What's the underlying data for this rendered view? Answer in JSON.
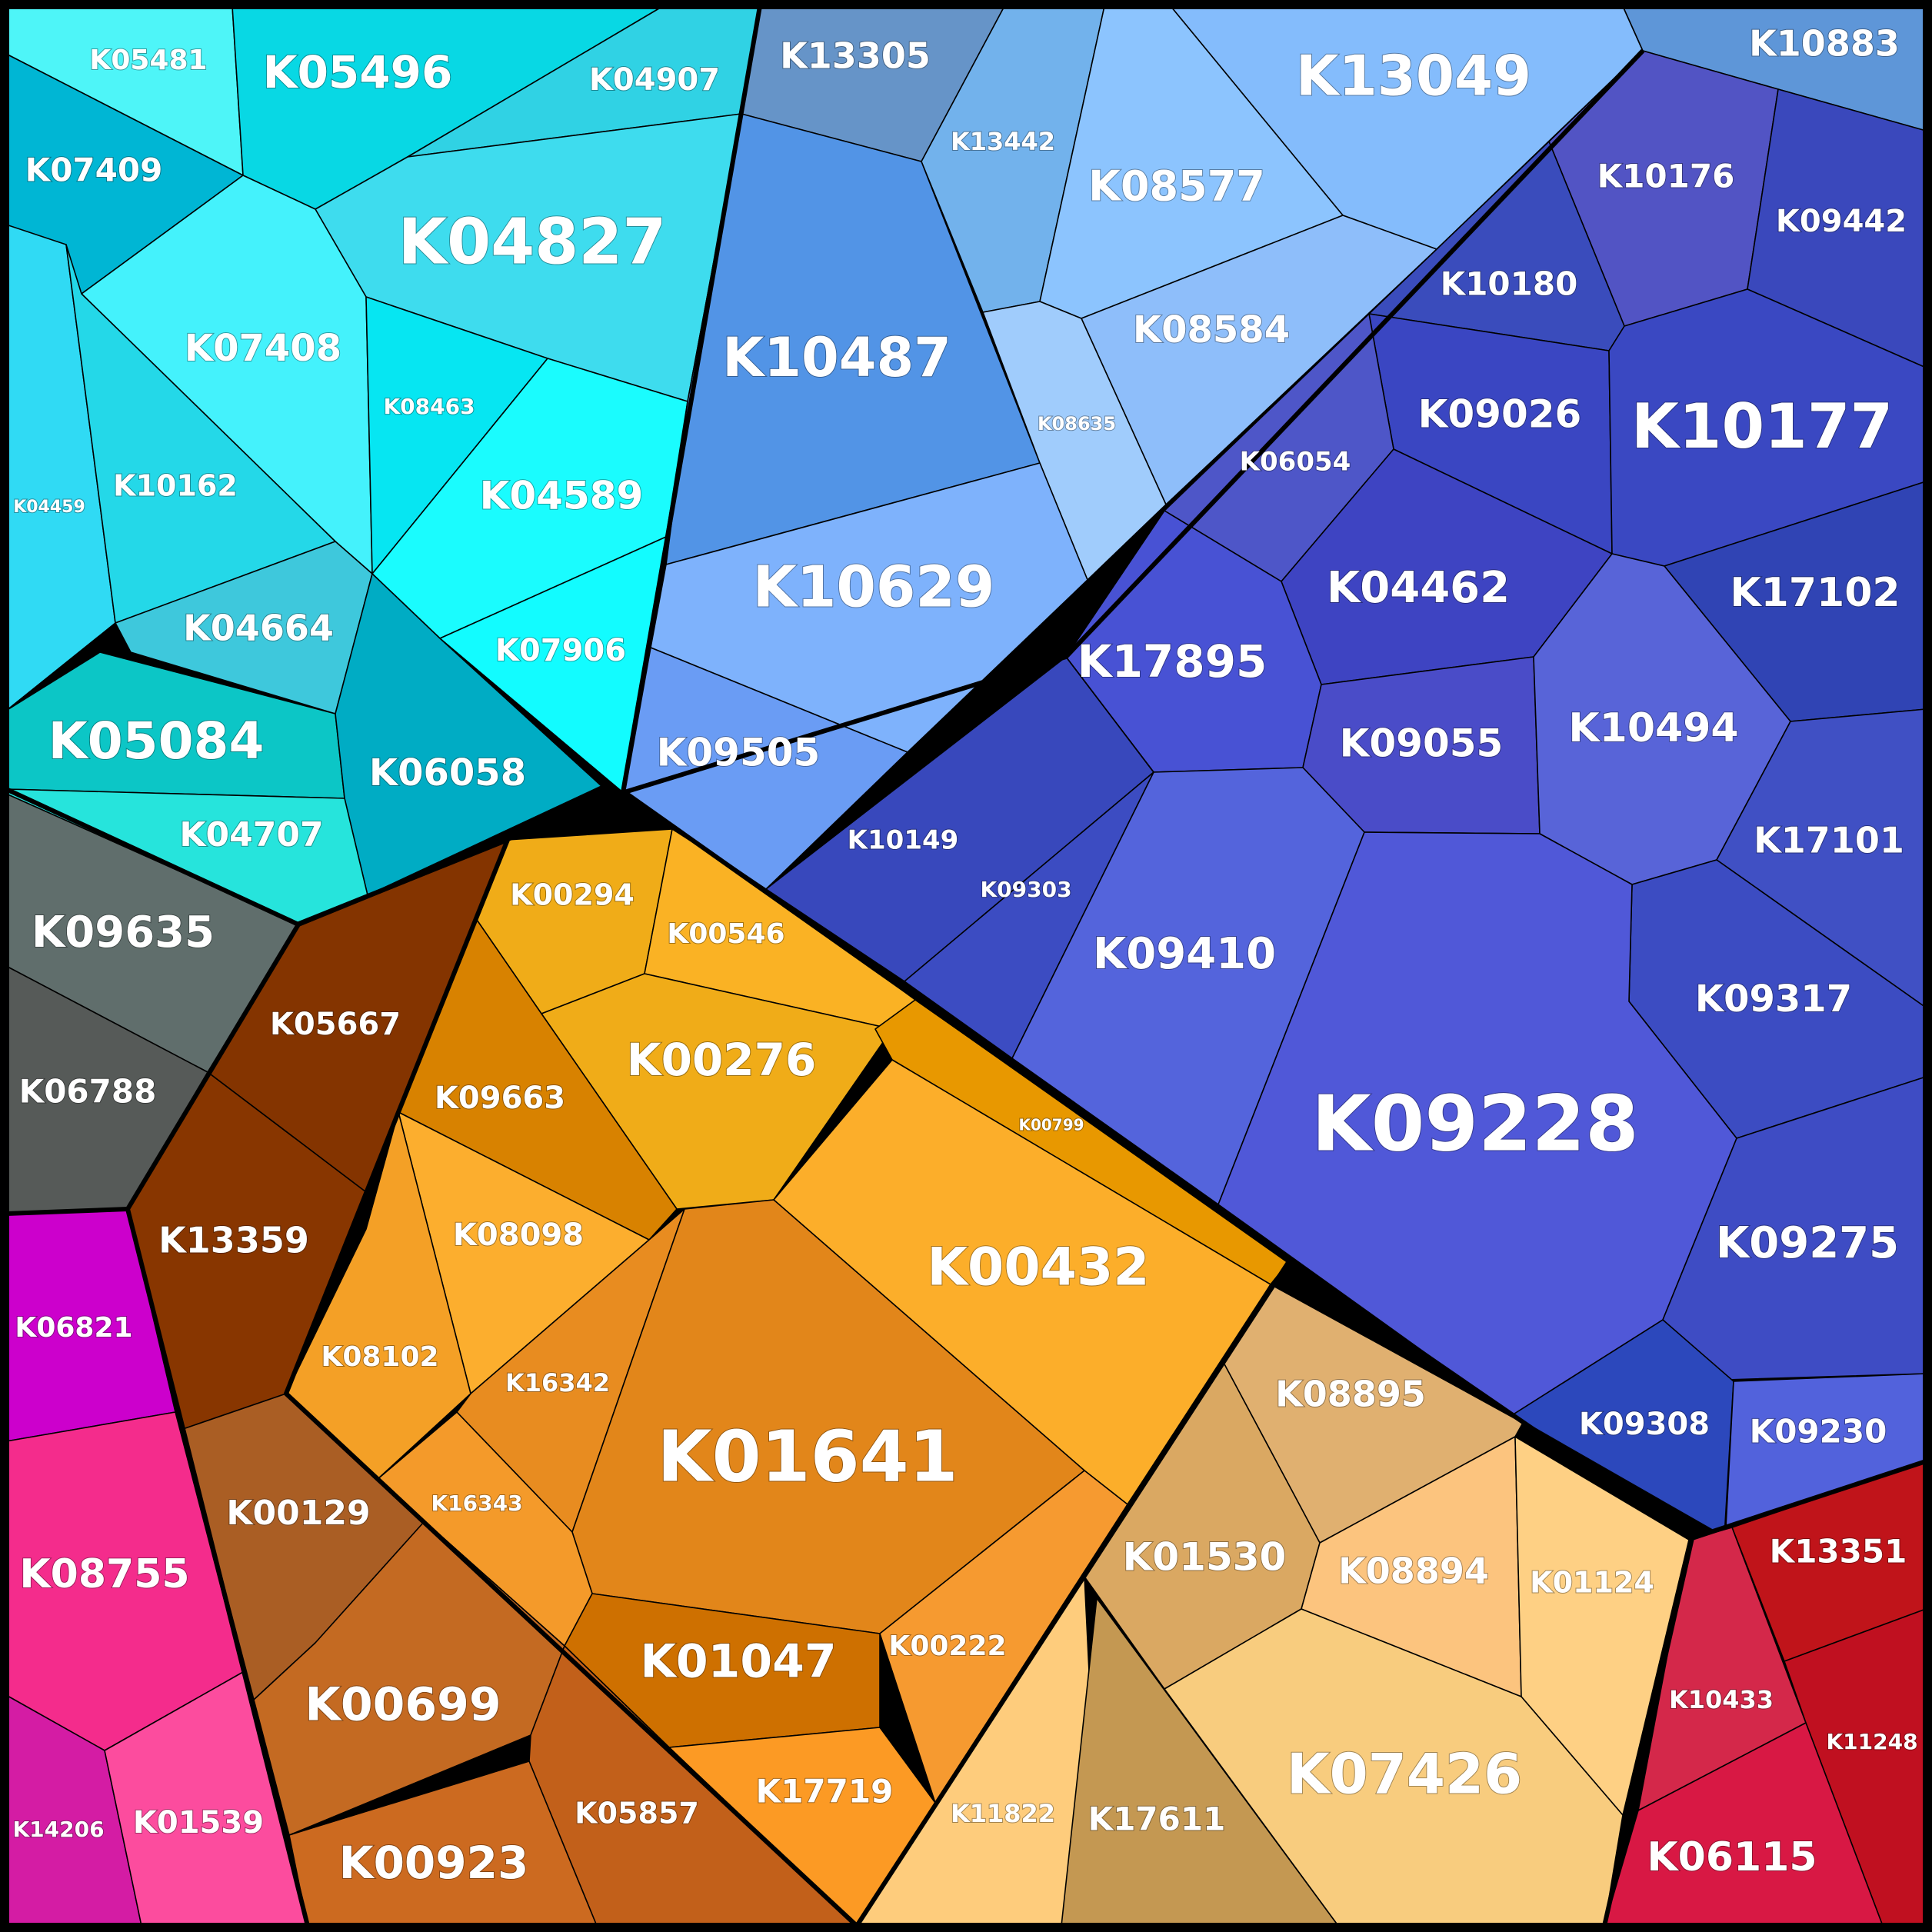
{
  "groups": [
    {
      "id": "cyan",
      "color": "#1ee0ee"
    },
    {
      "id": "blue",
      "color": "#4d8fe6"
    },
    {
      "id": "indigo",
      "color": "#4a52d4"
    },
    {
      "id": "orange",
      "color": "#f0a020"
    },
    {
      "id": "brown",
      "color": "#8a3a05"
    },
    {
      "id": "gray",
      "color": "#5a6260"
    },
    {
      "id": "pink",
      "color": "#f030a0"
    },
    {
      "id": "tan",
      "color": "#e6b060"
    },
    {
      "id": "red",
      "color": "#c8183a"
    }
  ],
  "cells": [
    {
      "id": "K05481",
      "color": "#4ef5f8"
    },
    {
      "id": "K05496",
      "color": "#08d8e4"
    },
    {
      "id": "K04907",
      "color": "#30d2e4"
    },
    {
      "id": "K07409",
      "color": "#00b6d4"
    },
    {
      "id": "K04827",
      "color": "#3edcee"
    },
    {
      "id": "K07408",
      "color": "#44f2fc"
    },
    {
      "id": "K08463",
      "color": "#06e6f2"
    },
    {
      "id": "K04589",
      "color": "#1afcfe"
    },
    {
      "id": "K04459",
      "color": "#30daf4"
    },
    {
      "id": "K10162",
      "color": "#24d8e8"
    },
    {
      "id": "K04664",
      "color": "#3ec8dc"
    },
    {
      "id": "K07906",
      "color": "#12fcff"
    },
    {
      "id": "K05084",
      "color": "#0cc6c6"
    },
    {
      "id": "K06058",
      "color": "#00acc4"
    },
    {
      "id": "K04707",
      "color": "#26e4dc"
    },
    {
      "id": "K13305",
      "color": "#6694c8"
    },
    {
      "id": "K13442",
      "color": "#72b2ec"
    },
    {
      "id": "K13049",
      "color": "#84bcfc"
    },
    {
      "id": "K08577",
      "color": "#8cc4fe"
    },
    {
      "id": "K10487",
      "color": "#5294e6"
    },
    {
      "id": "K08584",
      "color": "#8ebefa"
    },
    {
      "id": "K08635",
      "color": "#a0ccfc"
    },
    {
      "id": "K10629",
      "color": "#7eb2fc"
    },
    {
      "id": "K09505",
      "color": "#6a9cf4"
    },
    {
      "id": "K10883",
      "color": "#5e96d8"
    },
    {
      "id": "K10176",
      "color": "#5254c4"
    },
    {
      "id": "K09442",
      "color": "#3a48bc"
    },
    {
      "id": "K10180",
      "color": "#3a4cbc"
    },
    {
      "id": "K09026",
      "color": "#3a46c2"
    },
    {
      "id": "K10177",
      "color": "#3a48c2"
    },
    {
      "id": "K06054",
      "color": "#4e56c8"
    },
    {
      "id": "K04462",
      "color": "#3e44c2"
    },
    {
      "id": "K17102",
      "color": "#3044b4"
    },
    {
      "id": "K17895",
      "color": "#4852d4"
    },
    {
      "id": "K09055",
      "color": "#4a4cc8"
    },
    {
      "id": "K10494",
      "color": "#5864d8"
    },
    {
      "id": "K17101",
      "color": "#4050c4"
    },
    {
      "id": "K10149",
      "color": "#3848bc"
    },
    {
      "id": "K09303",
      "color": "#3c4cc2"
    },
    {
      "id": "K09410",
      "color": "#5464dc"
    },
    {
      "id": "K09317",
      "color": "#3c4cc2"
    },
    {
      "id": "K09228",
      "color": "#5058d8"
    },
    {
      "id": "K09275",
      "color": "#3e4cc4"
    },
    {
      "id": "K09308",
      "color": "#2c48bc"
    },
    {
      "id": "K09230",
      "color": "#5262dc"
    },
    {
      "id": "K00294",
      "color": "#f0ac18"
    },
    {
      "id": "K00546",
      "color": "#fab224"
    },
    {
      "id": "K00276",
      "color": "#f0ac18"
    },
    {
      "id": "K09663",
      "color": "#d88200"
    },
    {
      "id": "K00799",
      "color": "#e89800"
    },
    {
      "id": "K08098",
      "color": "#fcae2e"
    },
    {
      "id": "K00432",
      "color": "#fcae2a"
    },
    {
      "id": "K08102",
      "color": "#f4a026"
    },
    {
      "id": "K16342",
      "color": "#e88c20"
    },
    {
      "id": "K01641",
      "color": "#e2861a"
    },
    {
      "id": "K16343",
      "color": "#f49a2a"
    },
    {
      "id": "K00222",
      "color": "#f69a30"
    },
    {
      "id": "K01047",
      "color": "#ce7000"
    },
    {
      "id": "K17719",
      "color": "#fc9a24"
    },
    {
      "id": "K05667",
      "color": "#843400"
    },
    {
      "id": "K13359",
      "color": "#883600"
    },
    {
      "id": "K00129",
      "color": "#aa5e24"
    },
    {
      "id": "K00699",
      "color": "#c46a22"
    },
    {
      "id": "K05857",
      "color": "#c2601a"
    },
    {
      "id": "K00923",
      "color": "#cc6a20"
    },
    {
      "id": "K09635",
      "color": "#606e6c"
    },
    {
      "id": "K06788",
      "color": "#565a58"
    },
    {
      "id": "K06821",
      "color": "#cc00cc"
    },
    {
      "id": "K08755",
      "color": "#f42c8c"
    },
    {
      "id": "K14206",
      "color": "#d41ca4"
    },
    {
      "id": "K01539",
      "color": "#fc4c9e"
    },
    {
      "id": "K08895",
      "color": "#e0b070"
    },
    {
      "id": "K01530",
      "color": "#daa862"
    },
    {
      "id": "K08894",
      "color": "#fcc47e"
    },
    {
      "id": "K01124",
      "color": "#fed084"
    },
    {
      "id": "K07426",
      "color": "#f8cc7e"
    },
    {
      "id": "K11822",
      "color": "#fecc7c"
    },
    {
      "id": "K17611",
      "color": "#c49852"
    },
    {
      "id": "K13351",
      "color": "#c0141a"
    },
    {
      "id": "K10433",
      "color": "#d4284a"
    },
    {
      "id": "K11248",
      "color": "#c01020"
    },
    {
      "id": "K06115",
      "color": "#d81844"
    }
  ]
}
